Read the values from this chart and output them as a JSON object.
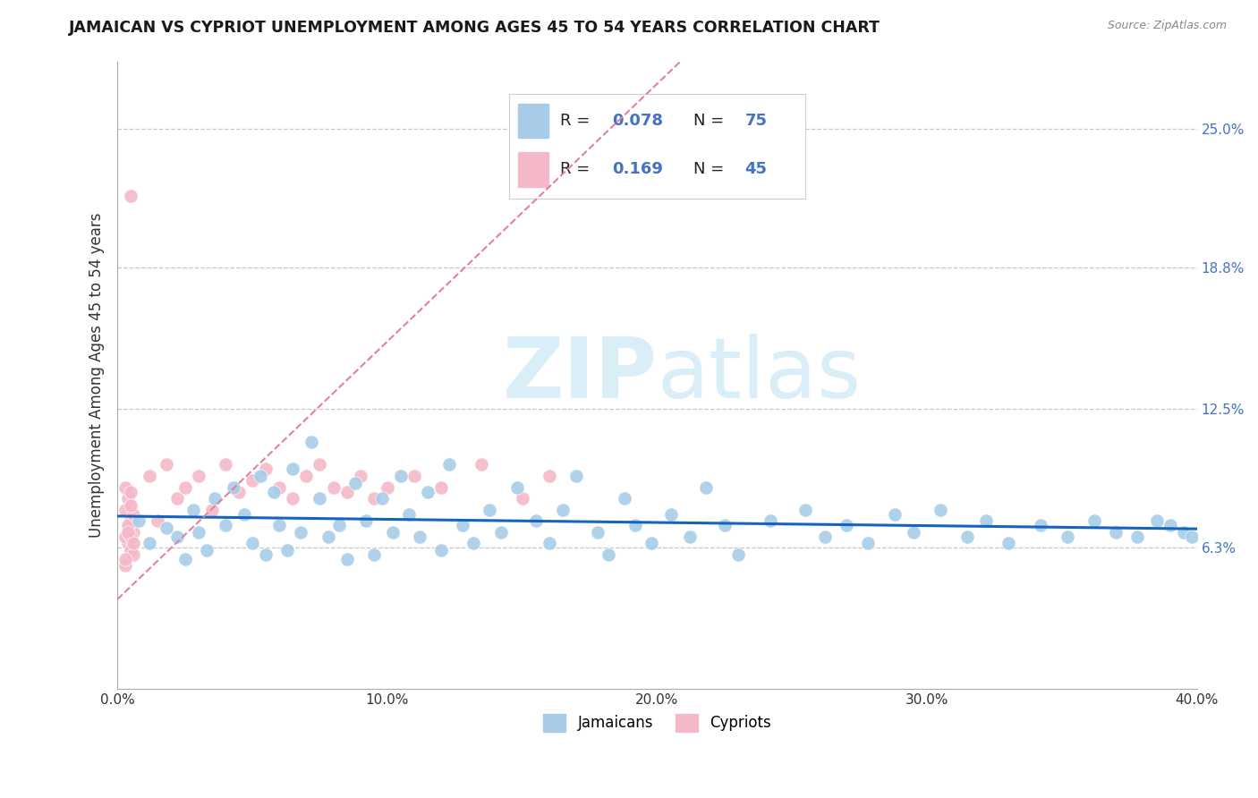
{
  "title": "JAMAICAN VS CYPRIOT UNEMPLOYMENT AMONG AGES 45 TO 54 YEARS CORRELATION CHART",
  "source": "Source: ZipAtlas.com",
  "ylabel": "Unemployment Among Ages 45 to 54 years",
  "xlim": [
    0.0,
    0.4
  ],
  "ylim": [
    0.0,
    0.28
  ],
  "ytick_vals": [
    0.063,
    0.125,
    0.188,
    0.25
  ],
  "ytick_labels": [
    "6.3%",
    "12.5%",
    "18.8%",
    "25.0%"
  ],
  "xticks": [
    0.0,
    0.1,
    0.2,
    0.3,
    0.4
  ],
  "xtick_labels": [
    "0.0%",
    "10.0%",
    "20.0%",
    "30.0%",
    "40.0%"
  ],
  "jamaican_color": "#a8cce8",
  "cypriot_color": "#f5b8c8",
  "jamaican_line_color": "#1565c0",
  "cypriot_line_color": "#e57fa0",
  "watermark_zip": "ZIP",
  "watermark_atlas": "atlas",
  "watermark_color": "#daeef8",
  "background_color": "#ffffff",
  "grid_color": "#c8c8c8",
  "title_color": "#1a1a1a",
  "source_color": "#888888",
  "label_color": "#4472c4",
  "jamaican_x": [
    0.008,
    0.012,
    0.018,
    0.022,
    0.025,
    0.028,
    0.03,
    0.033,
    0.036,
    0.04,
    0.043,
    0.047,
    0.05,
    0.053,
    0.055,
    0.058,
    0.06,
    0.063,
    0.065,
    0.068,
    0.072,
    0.075,
    0.078,
    0.082,
    0.085,
    0.088,
    0.092,
    0.095,
    0.098,
    0.102,
    0.105,
    0.108,
    0.112,
    0.115,
    0.12,
    0.123,
    0.128,
    0.132,
    0.138,
    0.142,
    0.148,
    0.155,
    0.16,
    0.165,
    0.17,
    0.178,
    0.182,
    0.188,
    0.192,
    0.198,
    0.205,
    0.212,
    0.218,
    0.225,
    0.23,
    0.242,
    0.255,
    0.262,
    0.27,
    0.278,
    0.288,
    0.295,
    0.305,
    0.315,
    0.322,
    0.33,
    0.342,
    0.352,
    0.362,
    0.37,
    0.378,
    0.385,
    0.39,
    0.395,
    0.398
  ],
  "jamaican_y": [
    0.075,
    0.065,
    0.072,
    0.068,
    0.058,
    0.08,
    0.07,
    0.062,
    0.085,
    0.073,
    0.09,
    0.078,
    0.065,
    0.095,
    0.06,
    0.088,
    0.073,
    0.062,
    0.098,
    0.07,
    0.11,
    0.085,
    0.068,
    0.073,
    0.058,
    0.092,
    0.075,
    0.06,
    0.085,
    0.07,
    0.095,
    0.078,
    0.068,
    0.088,
    0.062,
    0.1,
    0.073,
    0.065,
    0.08,
    0.07,
    0.09,
    0.075,
    0.065,
    0.08,
    0.095,
    0.07,
    0.06,
    0.085,
    0.073,
    0.065,
    0.078,
    0.068,
    0.09,
    0.073,
    0.06,
    0.075,
    0.08,
    0.068,
    0.073,
    0.065,
    0.078,
    0.07,
    0.08,
    0.068,
    0.075,
    0.065,
    0.073,
    0.068,
    0.075,
    0.07,
    0.068,
    0.075,
    0.073,
    0.07,
    0.068
  ],
  "cypriot_x": [
    0.005,
    0.004,
    0.003,
    0.006,
    0.005,
    0.004,
    0.003,
    0.005,
    0.004,
    0.006,
    0.003,
    0.005,
    0.004,
    0.006,
    0.003,
    0.005,
    0.004,
    0.003,
    0.006,
    0.005,
    0.012,
    0.015,
    0.018,
    0.022,
    0.025,
    0.03,
    0.035,
    0.04,
    0.045,
    0.05,
    0.055,
    0.06,
    0.065,
    0.07,
    0.075,
    0.08,
    0.085,
    0.09,
    0.095,
    0.1,
    0.11,
    0.12,
    0.135,
    0.15,
    0.16
  ],
  "cypriot_y": [
    0.22,
    0.065,
    0.068,
    0.07,
    0.075,
    0.072,
    0.08,
    0.062,
    0.085,
    0.06,
    0.09,
    0.068,
    0.073,
    0.078,
    0.055,
    0.082,
    0.07,
    0.058,
    0.065,
    0.088,
    0.095,
    0.075,
    0.1,
    0.085,
    0.09,
    0.095,
    0.08,
    0.1,
    0.088,
    0.093,
    0.098,
    0.09,
    0.085,
    0.095,
    0.1,
    0.09,
    0.088,
    0.095,
    0.085,
    0.09,
    0.095,
    0.09,
    0.1,
    0.085,
    0.095
  ]
}
